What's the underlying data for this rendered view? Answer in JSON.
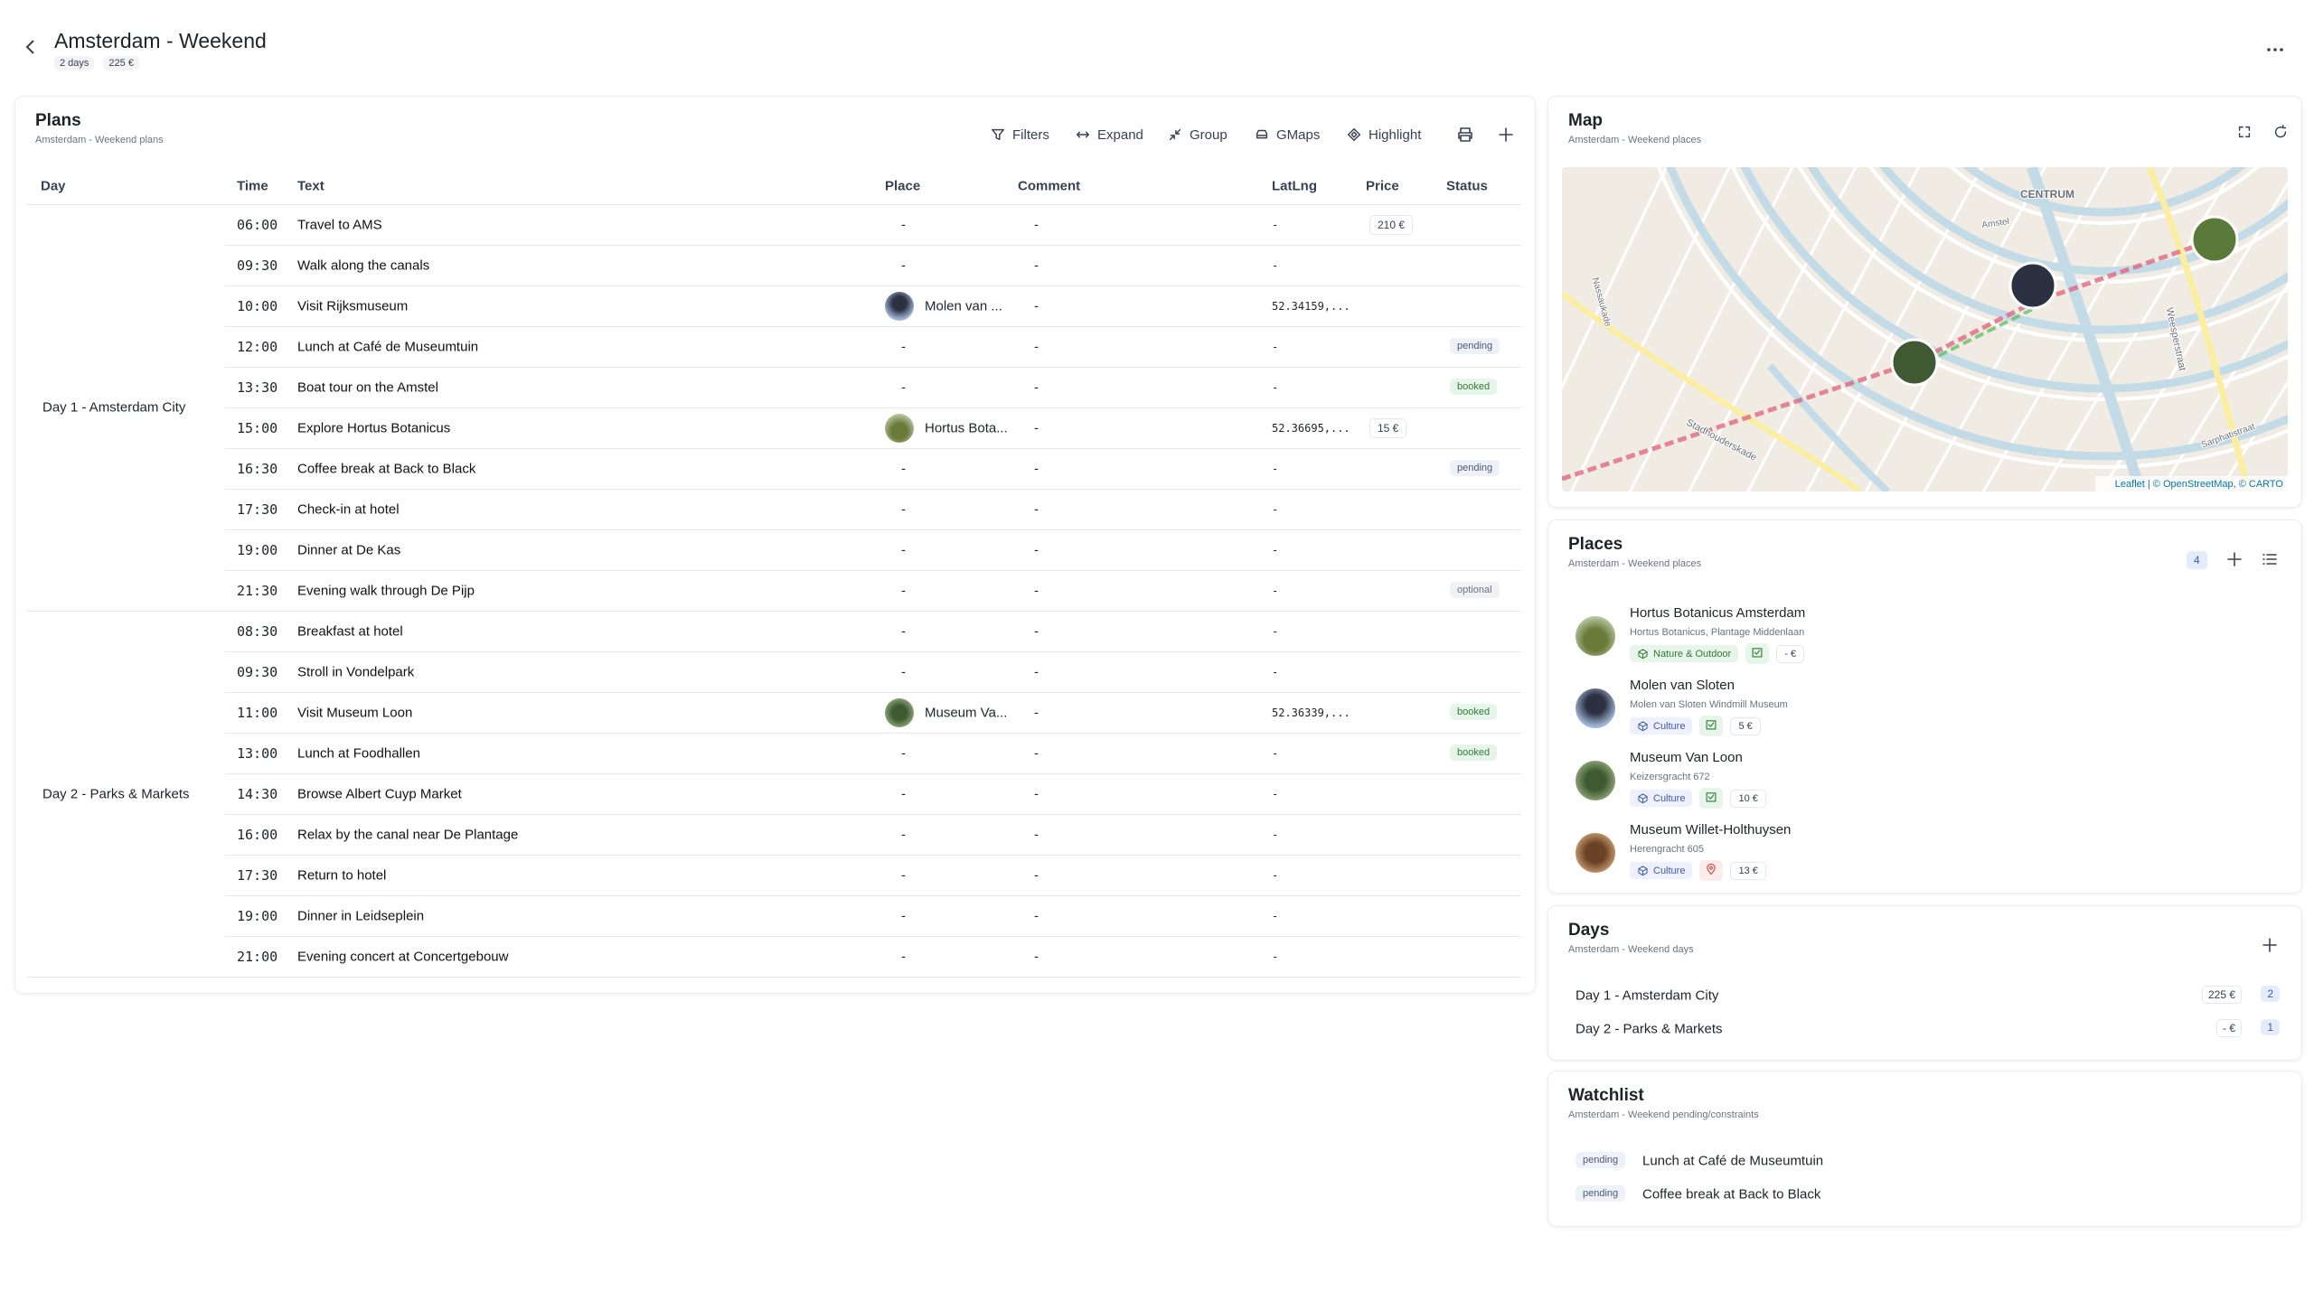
{
  "header": {
    "title": "Amsterdam - Weekend",
    "badges": [
      "2 days",
      "225 €"
    ]
  },
  "plans": {
    "title": "Plans",
    "subtitle": "Amsterdam - Weekend plans",
    "toolbar": [
      "Filters",
      "Expand",
      "Group",
      "GMaps",
      "Highlight"
    ],
    "columns": [
      "Day",
      "Time",
      "Text",
      "Place",
      "Comment",
      "LatLng",
      "Price",
      "Status"
    ],
    "groups": [
      {
        "day": "Day 1 - Amsterdam City",
        "rows": [
          {
            "time": "06:00",
            "text": "Travel to AMS",
            "place": "-",
            "comment": "-",
            "latlng": "-",
            "price": "210 €"
          },
          {
            "time": "09:30",
            "text": "Walk along the canals",
            "place": "-",
            "comment": "-",
            "latlng": "-"
          },
          {
            "time": "10:00",
            "text": "Visit Rijksmuseum",
            "place": "Molen van ...",
            "comment": "-",
            "latlng": "52.34159,..."
          },
          {
            "time": "12:00",
            "text": "Lunch at Café de Museumtuin",
            "place": "-",
            "comment": "-",
            "latlng": "-",
            "status": "pending"
          },
          {
            "time": "13:30",
            "text": "Boat tour on the Amstel",
            "place": "-",
            "comment": "-",
            "latlng": "-",
            "status": "booked"
          },
          {
            "time": "15:00",
            "text": "Explore Hortus Botanicus",
            "place": "Hortus Bota...",
            "comment": "-",
            "latlng": "52.36695,...",
            "price": "15 €"
          },
          {
            "time": "16:30",
            "text": "Coffee break at Back to Black",
            "place": "-",
            "comment": "-",
            "latlng": "-",
            "status": "pending"
          },
          {
            "time": "17:30",
            "text": "Check-in at hotel",
            "place": "-",
            "comment": "-",
            "latlng": "-"
          },
          {
            "time": "19:00",
            "text": "Dinner at De Kas",
            "place": "-",
            "comment": "-",
            "latlng": "-"
          },
          {
            "time": "21:30",
            "text": "Evening walk through De Pijp",
            "place": "-",
            "comment": "-",
            "latlng": "-",
            "status": "optional"
          }
        ]
      },
      {
        "day": "Day 2 - Parks & Markets",
        "rows": [
          {
            "time": "08:30",
            "text": "Breakfast at hotel",
            "place": "-",
            "comment": "-",
            "latlng": "-"
          },
          {
            "time": "09:30",
            "text": "Stroll in Vondelpark",
            "place": "-",
            "comment": "-",
            "latlng": "-"
          },
          {
            "time": "11:00",
            "text": "Visit Museum Loon",
            "place": "Museum Va...",
            "comment": "-",
            "latlng": "52.36339,...",
            "status": "booked"
          },
          {
            "time": "13:00",
            "text": "Lunch at Foodhallen",
            "place": "-",
            "comment": "-",
            "latlng": "-",
            "status": "booked"
          },
          {
            "time": "14:30",
            "text": "Browse Albert Cuyp Market",
            "place": "-",
            "comment": "-",
            "latlng": "-"
          },
          {
            "time": "16:00",
            "text": "Relax by the canal near De Plantage",
            "place": "-",
            "comment": "-",
            "latlng": "-"
          },
          {
            "time": "17:30",
            "text": "Return to hotel",
            "place": "-",
            "comment": "-",
            "latlng": "-"
          },
          {
            "time": "19:00",
            "text": "Dinner in Leidseplein",
            "place": "-",
            "comment": "-",
            "latlng": "-"
          },
          {
            "time": "21:00",
            "text": "Evening concert at Concertgebouw",
            "place": "-",
            "comment": "-",
            "latlng": "-"
          }
        ]
      }
    ]
  },
  "map": {
    "title": "Map",
    "subtitle": "Amsterdam - Weekend places",
    "labels": [
      "CENTRUM",
      "Nassaukade",
      "Stadhouderskade",
      "Weesperstraat",
      "Sarphatistraat",
      "Amstel"
    ],
    "attribution": "Leaflet | © OpenStreetMap, © CARTO"
  },
  "places": {
    "title": "Places",
    "subtitle": "Amsterdam - Weekend places",
    "count": 4,
    "items": [
      {
        "name": "Hortus Botanicus Amsterdam",
        "address": "Hortus Botanicus, Plantage Middenlaan",
        "category": "Nature & Outdoor",
        "price": "- €"
      },
      {
        "name": "Molen van Sloten",
        "address": "Molen van Sloten Windmill Museum",
        "category": "Culture",
        "price": "5 €"
      },
      {
        "name": "Museum Van Loon",
        "address": "Keizersgracht 672",
        "category": "Culture",
        "price": "10 €"
      },
      {
        "name": "Museum Willet-Holthuysen",
        "address": "Herengracht 605",
        "category": "Culture",
        "price": "13 €"
      }
    ]
  },
  "days": {
    "title": "Days",
    "subtitle": "Amsterdam - Weekend days",
    "items": [
      {
        "name": "Day 1 - Amsterdam City",
        "price": "225 €",
        "count": 2
      },
      {
        "name": "Day 2 - Parks & Markets",
        "price": "- €",
        "count": 1
      }
    ]
  },
  "watchlist": {
    "title": "Watchlist",
    "subtitle": "Amsterdam - Weekend pending/constraints",
    "items": [
      {
        "status": "pending",
        "text": "Lunch at Café de Museumtuin"
      },
      {
        "status": "pending",
        "text": "Coffee break at Back to Black"
      }
    ]
  }
}
